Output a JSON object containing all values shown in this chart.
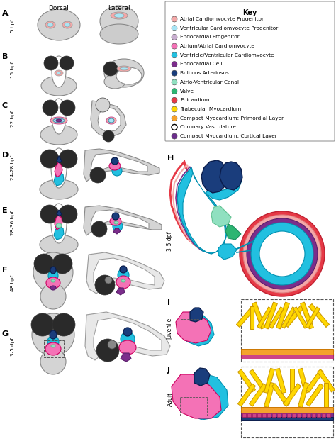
{
  "key_title": "Key",
  "legend_items": [
    {
      "label": "Atrial Cardiomyocyte Progenitor",
      "color": "#F4A8A8"
    },
    {
      "label": "Ventricular Cardiomyocyte Progenitor",
      "color": "#A8E4F4"
    },
    {
      "label": "Endocardial Progenitor",
      "color": "#C8AECF"
    },
    {
      "label": "Atrium/Atrial Cardiomyocyte",
      "color": "#F472B6"
    },
    {
      "label": "Ventricle/Ventricular Cardiomyocyte",
      "color": "#22C0E0"
    },
    {
      "label": "Endocardial Cell",
      "color": "#7B2D8B"
    },
    {
      "label": "Bulbous Arteriosus",
      "color": "#1A3D7C"
    },
    {
      "label": "Atrio-Ventricular Canal",
      "color": "#90E0C0"
    },
    {
      "label": "Valve",
      "color": "#2DB572"
    },
    {
      "label": "Epicardium",
      "color": "#E63946"
    },
    {
      "label": "Trabecular Myocardium",
      "color": "#FFD700"
    },
    {
      "label": "Compact Myocardium: Primordial Layer",
      "color": "#F4A22D"
    },
    {
      "label": "Coronary Vasculature",
      "color": "#000000",
      "hollow": true
    },
    {
      "label": "Compact Myocardium: Cortical Layer",
      "color": "#6B2D8B"
    }
  ],
  "stage_labels": [
    "A",
    "B",
    "C",
    "D",
    "E",
    "F",
    "G"
  ],
  "time_labels": [
    "5 hpf",
    "15 hpf",
    "22 hpf",
    "24-28 hpf",
    "28-36 hpf",
    "48 hpf",
    "3-5 dpf"
  ],
  "col_labels": [
    "Dorsal",
    "Lateral"
  ],
  "gray": "#D4D4D4",
  "light_gray": "#E8E8E8",
  "white_inner": "#FFFFFF",
  "dark_eye": "#2A2A2A",
  "yolk_gray": "#CCCCCC"
}
